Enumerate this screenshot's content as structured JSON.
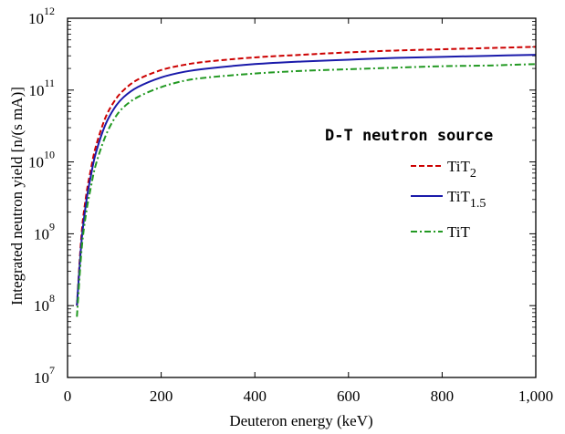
{
  "chart_data": {
    "type": "line",
    "title": "",
    "xlabel": "Deuteron energy (keV)",
    "ylabel": "Integrated neutron yield [n/(s mA)]",
    "xlim": [
      0,
      1000
    ],
    "ylim": [
      10000000,
      1000000000000
    ],
    "yscale": "log",
    "grid": false,
    "legend_position": "center-right",
    "x_ticks": [
      0,
      200,
      400,
      600,
      800,
      1000
    ],
    "x_tick_labels": [
      "0",
      "200",
      "400",
      "600",
      "800",
      "1,000"
    ],
    "y_ticks": [
      {
        "base": "10",
        "exp": "7",
        "value": 10000000
      },
      {
        "base": "10",
        "exp": "8",
        "value": 100000000
      },
      {
        "base": "10",
        "exp": "9",
        "value": 1000000000
      },
      {
        "base": "10",
        "exp": "10",
        "value": 10000000000
      },
      {
        "base": "10",
        "exp": "11",
        "value": 100000000000
      },
      {
        "base": "10",
        "exp": "12",
        "value": 1000000000000
      }
    ],
    "legend_title": "D-T neutron source",
    "x": [
      20,
      30,
      40,
      50,
      60,
      80,
      100,
      120,
      150,
      200,
      250,
      300,
      400,
      500,
      600,
      700,
      800,
      900,
      1000
    ],
    "series": [
      {
        "name": "TiT",
        "sub": "2",
        "color": "#cc0000",
        "dash": "6,3",
        "width": 2,
        "values": [
          100000000.0,
          1000000000.0,
          3500000000.0,
          8000000000.0,
          16000000000.0,
          40000000000.0,
          70000000000.0,
          100000000000.0,
          140000000000.0,
          190000000000.0,
          225000000000.0,
          250000000000.0,
          285000000000.0,
          310000000000.0,
          335000000000.0,
          355000000000.0,
          370000000000.0,
          385000000000.0,
          400000000000.0
        ]
      },
      {
        "name": "TiT",
        "sub": "1.5",
        "color": "#1a1aaa",
        "dash": "",
        "width": 2,
        "values": [
          100000000.0,
          800000000.0,
          2800000000.0,
          6500000000.0,
          13000000000.0,
          32000000000.0,
          56000000000.0,
          80000000000.0,
          110000000000.0,
          150000000000.0,
          180000000000.0,
          200000000000.0,
          230000000000.0,
          250000000000.0,
          265000000000.0,
          280000000000.0,
          290000000000.0,
          300000000000.0,
          310000000000.0
        ]
      },
      {
        "name": "TiT",
        "sub": "",
        "color": "#229922",
        "dash": "7,3,2,3",
        "width": 2,
        "values": [
          70000000.0,
          600000000.0,
          2000000000.0,
          4500000000.0,
          9000000000.0,
          22000000000.0,
          40000000000.0,
          58000000000.0,
          80000000000.0,
          110000000000.0,
          135000000000.0,
          150000000000.0,
          170000000000.0,
          185000000000.0,
          195000000000.0,
          205000000000.0,
          215000000000.0,
          220000000000.0,
          230000000000.0
        ]
      }
    ]
  }
}
